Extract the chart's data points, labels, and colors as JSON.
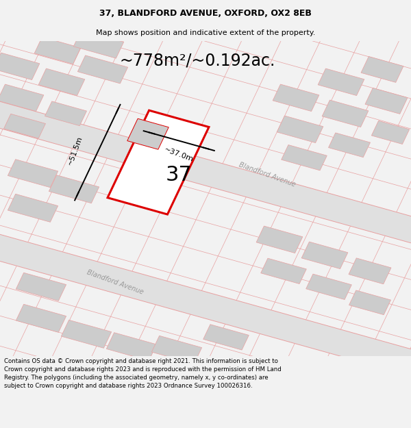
{
  "title_line1": "37, BLANDFORD AVENUE, OXFORD, OX2 8EB",
  "title_line2": "Map shows position and indicative extent of the property.",
  "area_text": "~778m²/~0.192ac.",
  "dim_width": "~37.0m",
  "dim_height": "~51.5m",
  "number_label": "37",
  "street_label_upper": "Blandford Avenue",
  "street_label_lower": "Blandford Avenue",
  "footer_text": "Contains OS data © Crown copyright and database right 2021. This information is subject to Crown copyright and database rights 2023 and is reproduced with the permission of HM Land Registry. The polygons (including the associated geometry, namely x, y co-ordinates) are subject to Crown copyright and database rights 2023 Ordnance Survey 100026316.",
  "bg_color": "#f2f2f2",
  "map_bg": "#ffffff",
  "road_fill": "#e0e0e0",
  "plot_outline_color": "#dd0000",
  "pink_line_color": "#e8a0a0",
  "gray_block_color": "#cccccc",
  "map_ang": -20,
  "title_fontsize": 9,
  "subtitle_fontsize": 8,
  "area_fontsize": 17,
  "dim_fontsize": 8,
  "number_fontsize": 22,
  "street_fontsize": 7,
  "footer_fontsize": 6.2
}
